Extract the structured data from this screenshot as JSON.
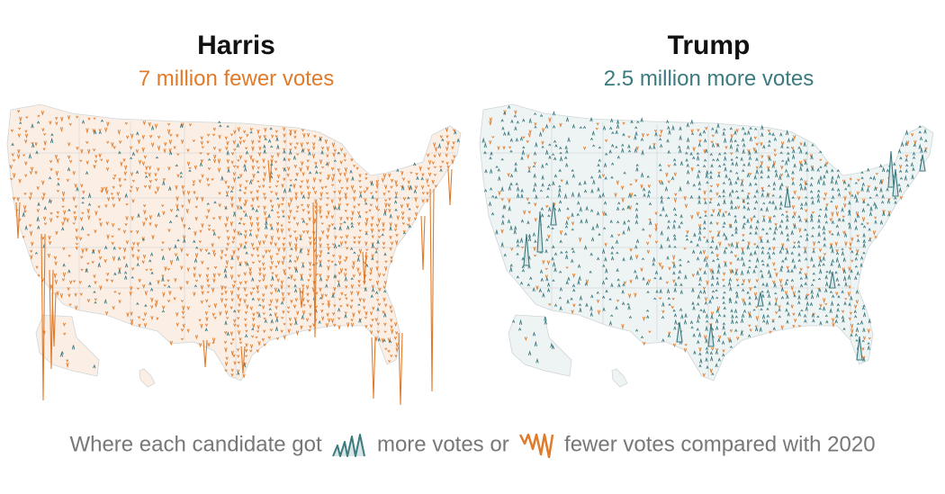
{
  "maps": [
    {
      "candidate": "Harris",
      "subtitle": "7 million fewer votes",
      "subtitle_color": "#e07b2a",
      "dominant": "fewer",
      "fewer_share": 0.8
    },
    {
      "candidate": "Trump",
      "subtitle": "2.5 million more votes",
      "subtitle_color": "#3b7a7f",
      "dominant": "more",
      "fewer_share": 0.25
    }
  ],
  "legend": {
    "text_before": "Where each candidate got",
    "more_label": "more votes or",
    "fewer_label": "fewer votes compared with 2020",
    "more_icon": "teal-up-spike-icon",
    "fewer_icon": "orange-down-spike-icon"
  },
  "colors": {
    "more": "#3b7a7f",
    "fewer": "#e07b2a",
    "fill_more": "#eef3f3",
    "fill_fewer": "#fbeee4",
    "border": "#cfd6d8"
  }
}
